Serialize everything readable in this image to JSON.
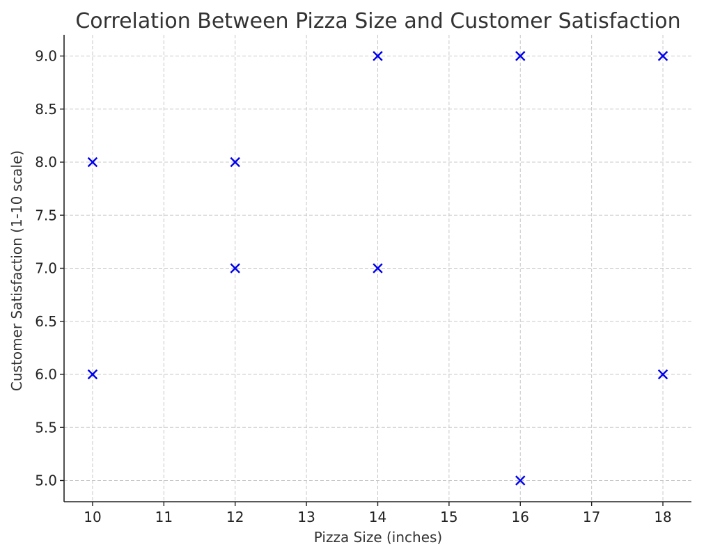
{
  "chart_data": {
    "type": "scatter",
    "title": "Correlation Between Pizza Size and Customer Satisfaction",
    "xlabel": "Pizza Size (inches)",
    "ylabel": "Customer Satisfaction (1-10 scale)",
    "xlim": [
      9.6,
      18.4
    ],
    "ylim": [
      4.8,
      9.2
    ],
    "xticks": [
      10,
      11,
      12,
      13,
      14,
      15,
      16,
      17,
      18
    ],
    "yticks": [
      5.0,
      5.5,
      6.0,
      6.5,
      7.0,
      7.5,
      8.0,
      8.5,
      9.0
    ],
    "xtick_labels": [
      "10",
      "11",
      "12",
      "13",
      "14",
      "15",
      "16",
      "17",
      "18"
    ],
    "ytick_labels": [
      "5.0",
      "5.5",
      "6.0",
      "6.5",
      "7.0",
      "7.5",
      "8.0",
      "8.5",
      "9.0"
    ],
    "grid": true,
    "marker": "x",
    "marker_color": "#0000ee",
    "points": [
      {
        "x": 10,
        "y": 8
      },
      {
        "x": 10,
        "y": 6
      },
      {
        "x": 12,
        "y": 8
      },
      {
        "x": 12,
        "y": 7
      },
      {
        "x": 14,
        "y": 9
      },
      {
        "x": 14,
        "y": 7
      },
      {
        "x": 16,
        "y": 9
      },
      {
        "x": 16,
        "y": 5
      },
      {
        "x": 18,
        "y": 9
      },
      {
        "x": 18,
        "y": 6
      }
    ]
  }
}
